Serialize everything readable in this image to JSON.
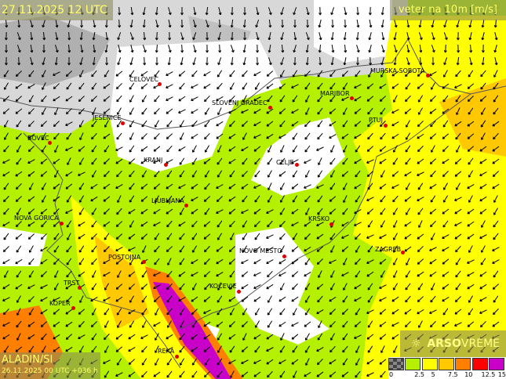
{
  "header": {
    "valid_time": "27.11.2025 12 UTC",
    "parameter": "veter na 10m [m/s]"
  },
  "footer": {
    "model": "ALADIN/SI",
    "run": "26.11.2025 00 UTC +036 h",
    "brand_bold": "ARSO",
    "brand_light": "VREME",
    "brand_icon": "sun-icon"
  },
  "legend": {
    "labels": [
      "0",
      "2.5",
      "5",
      "7.5",
      "10",
      "12.5",
      "15"
    ],
    "colors": [
      "#555555",
      "#b4f000",
      "#ffff00",
      "#ffc800",
      "#ff8000",
      "#ff0000",
      "#c800c8"
    ]
  },
  "wind_direction": "from northeast",
  "cities": [
    {
      "name": "CELOVEC"
    },
    {
      "name": "SLOVENJ GRADEC"
    },
    {
      "name": "MARIBOR"
    },
    {
      "name": "MURSKA SOBOTA"
    },
    {
      "name": "JESENICE"
    },
    {
      "name": "BOVEC"
    },
    {
      "name": "KRANJ"
    },
    {
      "name": "CELJE"
    },
    {
      "name": "PTUJ"
    },
    {
      "name": "LJUBLJANA"
    },
    {
      "name": "NOVA GORICA"
    },
    {
      "name": "KRŠKO"
    },
    {
      "name": "ZAGREB"
    },
    {
      "name": "POSTOJNA"
    },
    {
      "name": "NOVO MESTO"
    },
    {
      "name": "TRST"
    },
    {
      "name": "KOČEVJE"
    },
    {
      "name": "KOPER"
    },
    {
      "name": "REKA"
    }
  ]
}
